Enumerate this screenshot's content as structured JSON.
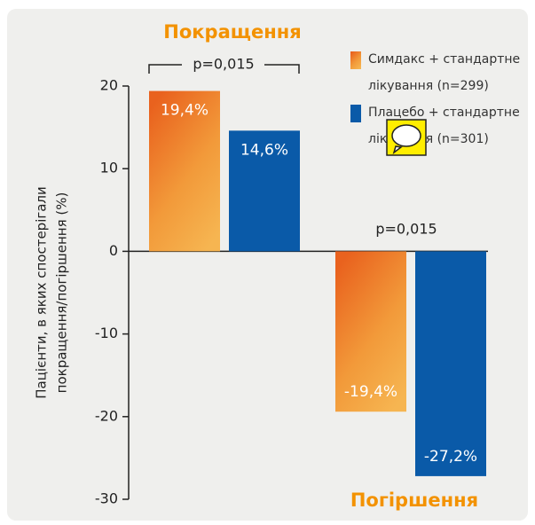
{
  "chart_data": {
    "type": "bar",
    "categories": [
      "Покращення",
      "Погіршення"
    ],
    "series": [
      {
        "name": "Симдакс + стандартне лікування (n=299)",
        "color": "#e9621e",
        "values": [
          19.4,
          -19.4
        ],
        "value_labels": [
          "19,4%",
          "-19,4%"
        ]
      },
      {
        "name": "Плацебо + стандартне лікування (n=301)",
        "color": "#0a5aa8",
        "values": [
          14.6,
          -27.2
        ],
        "value_labels": [
          "14,6%",
          "-27,2%"
        ]
      }
    ],
    "ylabel": [
      "Пацієнти, в яких спостерігали",
      "покращення/погіршення (%)"
    ],
    "annotations": [
      "p=0,015",
      "p=0,015"
    ],
    "ylim": [
      -30,
      20
    ],
    "yticks": [
      -30,
      -20,
      -10,
      0,
      10,
      20
    ]
  }
}
